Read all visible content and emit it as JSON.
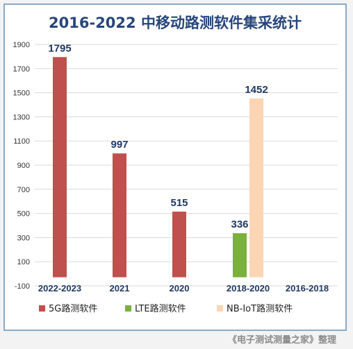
{
  "title": "2016-2022 中移动路测软件集采统计",
  "footer": "《电子测试测量之家》整理",
  "chart_data": {
    "type": "bar",
    "title": "2016-2022 中移动路测软件集采统计",
    "xlabel": "",
    "ylabel": "",
    "ylim": [
      -100,
      1900
    ],
    "yticks": [
      -100,
      100,
      300,
      500,
      700,
      900,
      1100,
      1300,
      1500,
      1700,
      1900
    ],
    "grid": true,
    "legend_position": "bottom",
    "categories": [
      "2022-2023",
      "2021",
      "2020",
      "2018-2020",
      "2016-2018"
    ],
    "series": [
      {
        "name": "5G路测软件",
        "color": "#c0504d",
        "values": [
          1795,
          997,
          515,
          null,
          null
        ]
      },
      {
        "name": "LTE路测软件",
        "color": "#7ab03c",
        "values": [
          null,
          null,
          null,
          336,
          null
        ]
      },
      {
        "name": "NB-IoT路测软件",
        "color": "#fcd5b4",
        "values": [
          null,
          null,
          null,
          1452,
          null
        ]
      }
    ]
  }
}
